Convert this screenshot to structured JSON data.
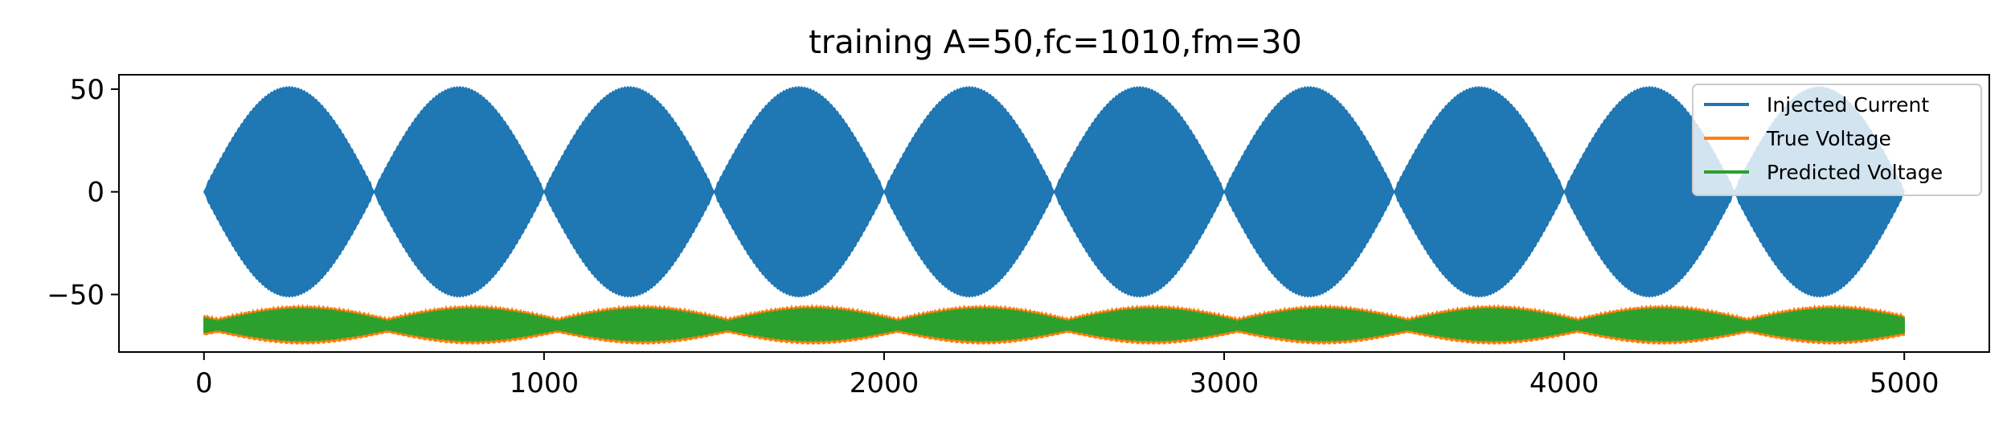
{
  "chart_data": {
    "type": "line",
    "title": "training A=50,fc=1010,fm=30",
    "xlabel": "",
    "ylabel": "",
    "xlim": [
      -250,
      5250
    ],
    "ylim": [
      -78,
      57
    ],
    "x_ticks": [
      0,
      1000,
      2000,
      3000,
      4000,
      5000
    ],
    "x_tick_labels": [
      "0",
      "1000",
      "2000",
      "3000",
      "4000",
      "5000"
    ],
    "y_ticks": [
      50,
      0,
      -50
    ],
    "y_tick_labels": [
      "50",
      "0",
      "−50"
    ],
    "grid": false,
    "legend_position": "top-right",
    "x_range": [
      0,
      5000
    ],
    "series": [
      {
        "name": "Injected Current",
        "color": "#1f77b4",
        "description_type": "amplitude-modulated envelope",
        "center": 0,
        "amplitude": 50,
        "envelope_period": 1000,
        "envelope_peaks_x": [
          250,
          750,
          1250,
          1750,
          2250,
          2750,
          3250,
          3750,
          4250,
          4750
        ],
        "envelope_zeros_x": [
          0,
          500,
          1000,
          1500,
          2000,
          2500,
          3000,
          3500,
          4000,
          4500,
          5000
        ]
      },
      {
        "name": "True Voltage",
        "color": "#ff7f0e",
        "center": -65,
        "upper_min": -62,
        "upper_max": -56,
        "lower_min": -68,
        "lower_max": -73,
        "envelope_period": 500
      },
      {
        "name": "Predicted Voltage",
        "color": "#2ca02c",
        "center": -65,
        "upper_min": -63,
        "upper_max": -57,
        "lower_min": -67,
        "lower_max": -72,
        "envelope_period": 500
      }
    ]
  }
}
